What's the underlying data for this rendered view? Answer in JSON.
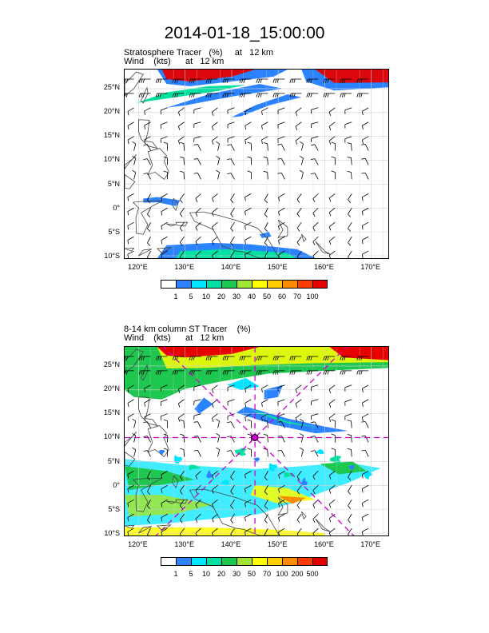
{
  "title": "2014-01-18_15:00:00",
  "colors": {
    "tracer_scale": [
      "#ffffff",
      "#2b83ff",
      "#00e5ff",
      "#00e0a0",
      "#1ec850",
      "#a0e632",
      "#ffff00",
      "#ffcc00",
      "#ff8c00",
      "#ff3c00",
      "#e60000"
    ],
    "coast": "#444444",
    "marker": "#cc00cc"
  },
  "panel1": {
    "subtitle_line1": "Stratosphere Tracer   (%)     at   12 km",
    "subtitle_line2": "Wind    (kts)      at   12 km",
    "lat_labels": [
      "25°N",
      "20°N",
      "15°N",
      "10°N",
      "5°N",
      "0°",
      "5°S",
      "10°S"
    ],
    "lon_labels": [
      "120°E",
      "130°E",
      "140°E",
      "150°E",
      "160°E",
      "170°E"
    ],
    "colorbar_labels": [
      "1",
      "5",
      "10",
      "20",
      "30",
      "40",
      "50",
      "60",
      "70",
      "100"
    ]
  },
  "panel2": {
    "subtitle_line1": "8-14 km column ST Tracer    (%)",
    "subtitle_line2": "Wind    (kts)      at   12 km",
    "lat_labels": [
      "25°N",
      "20°N",
      "15°N",
      "10°N",
      "5°N",
      "0°",
      "5°S",
      "10°S"
    ],
    "lon_labels": [
      "120°E",
      "130°E",
      "140°E",
      "150°E",
      "160°E",
      "170°E"
    ],
    "colorbar_labels": [
      "1",
      "5",
      "10",
      "20",
      "30",
      "50",
      "70",
      "100",
      "200",
      "500"
    ],
    "marker": {
      "lon": 145,
      "lat": 10
    }
  },
  "map_extent": {
    "lon_min": 117,
    "lon_max": 174,
    "lat_min": -10.5,
    "lat_max": 29
  }
}
